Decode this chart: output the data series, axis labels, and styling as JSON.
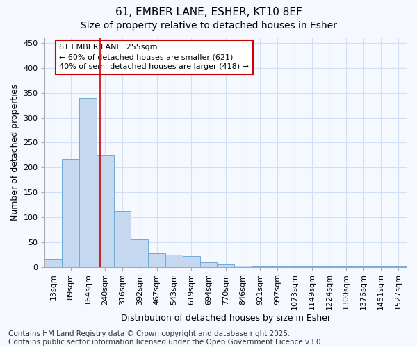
{
  "title_line1": "61, EMBER LANE, ESHER, KT10 8EF",
  "title_line2": "Size of property relative to detached houses in Esher",
  "xlabel": "Distribution of detached houses by size in Esher",
  "ylabel": "Number of detached properties",
  "categories": [
    "13sqm",
    "89sqm",
    "164sqm",
    "240sqm",
    "316sqm",
    "392sqm",
    "467sqm",
    "543sqm",
    "619sqm",
    "694sqm",
    "770sqm",
    "846sqm",
    "921sqm",
    "997sqm",
    "1073sqm",
    "1149sqm",
    "1224sqm",
    "1300sqm",
    "1376sqm",
    "1451sqm",
    "1527sqm"
  ],
  "values": [
    16,
    217,
    340,
    224,
    113,
    55,
    27,
    25,
    22,
    9,
    5,
    2,
    1,
    1,
    1,
    1,
    1,
    1,
    1,
    1,
    1
  ],
  "bar_color": "#c5d8f0",
  "bar_edge_color": "#6faad8",
  "red_line_x": 2.72,
  "red_line_color": "#cc0000",
  "annotation_text_line1": "61 EMBER LANE: 255sqm",
  "annotation_text_line2": "← 60% of detached houses are smaller (621)",
  "annotation_text_line3": "40% of semi-detached houses are larger (418) →",
  "box_edge_color": "#cc0000",
  "footer_text": "Contains HM Land Registry data © Crown copyright and database right 2025.\nContains public sector information licensed under the Open Government Licence v3.0.",
  "ylim": [
    0,
    460
  ],
  "yticks": [
    0,
    50,
    100,
    150,
    200,
    250,
    300,
    350,
    400,
    450
  ],
  "background_color": "#f5f8ff",
  "plot_background": "#f5f8ff",
  "grid_color": "#d0dff5",
  "title_fontsize": 11,
  "subtitle_fontsize": 10,
  "label_fontsize": 9,
  "tick_fontsize": 8,
  "annotation_fontsize": 8,
  "footer_fontsize": 7.5
}
